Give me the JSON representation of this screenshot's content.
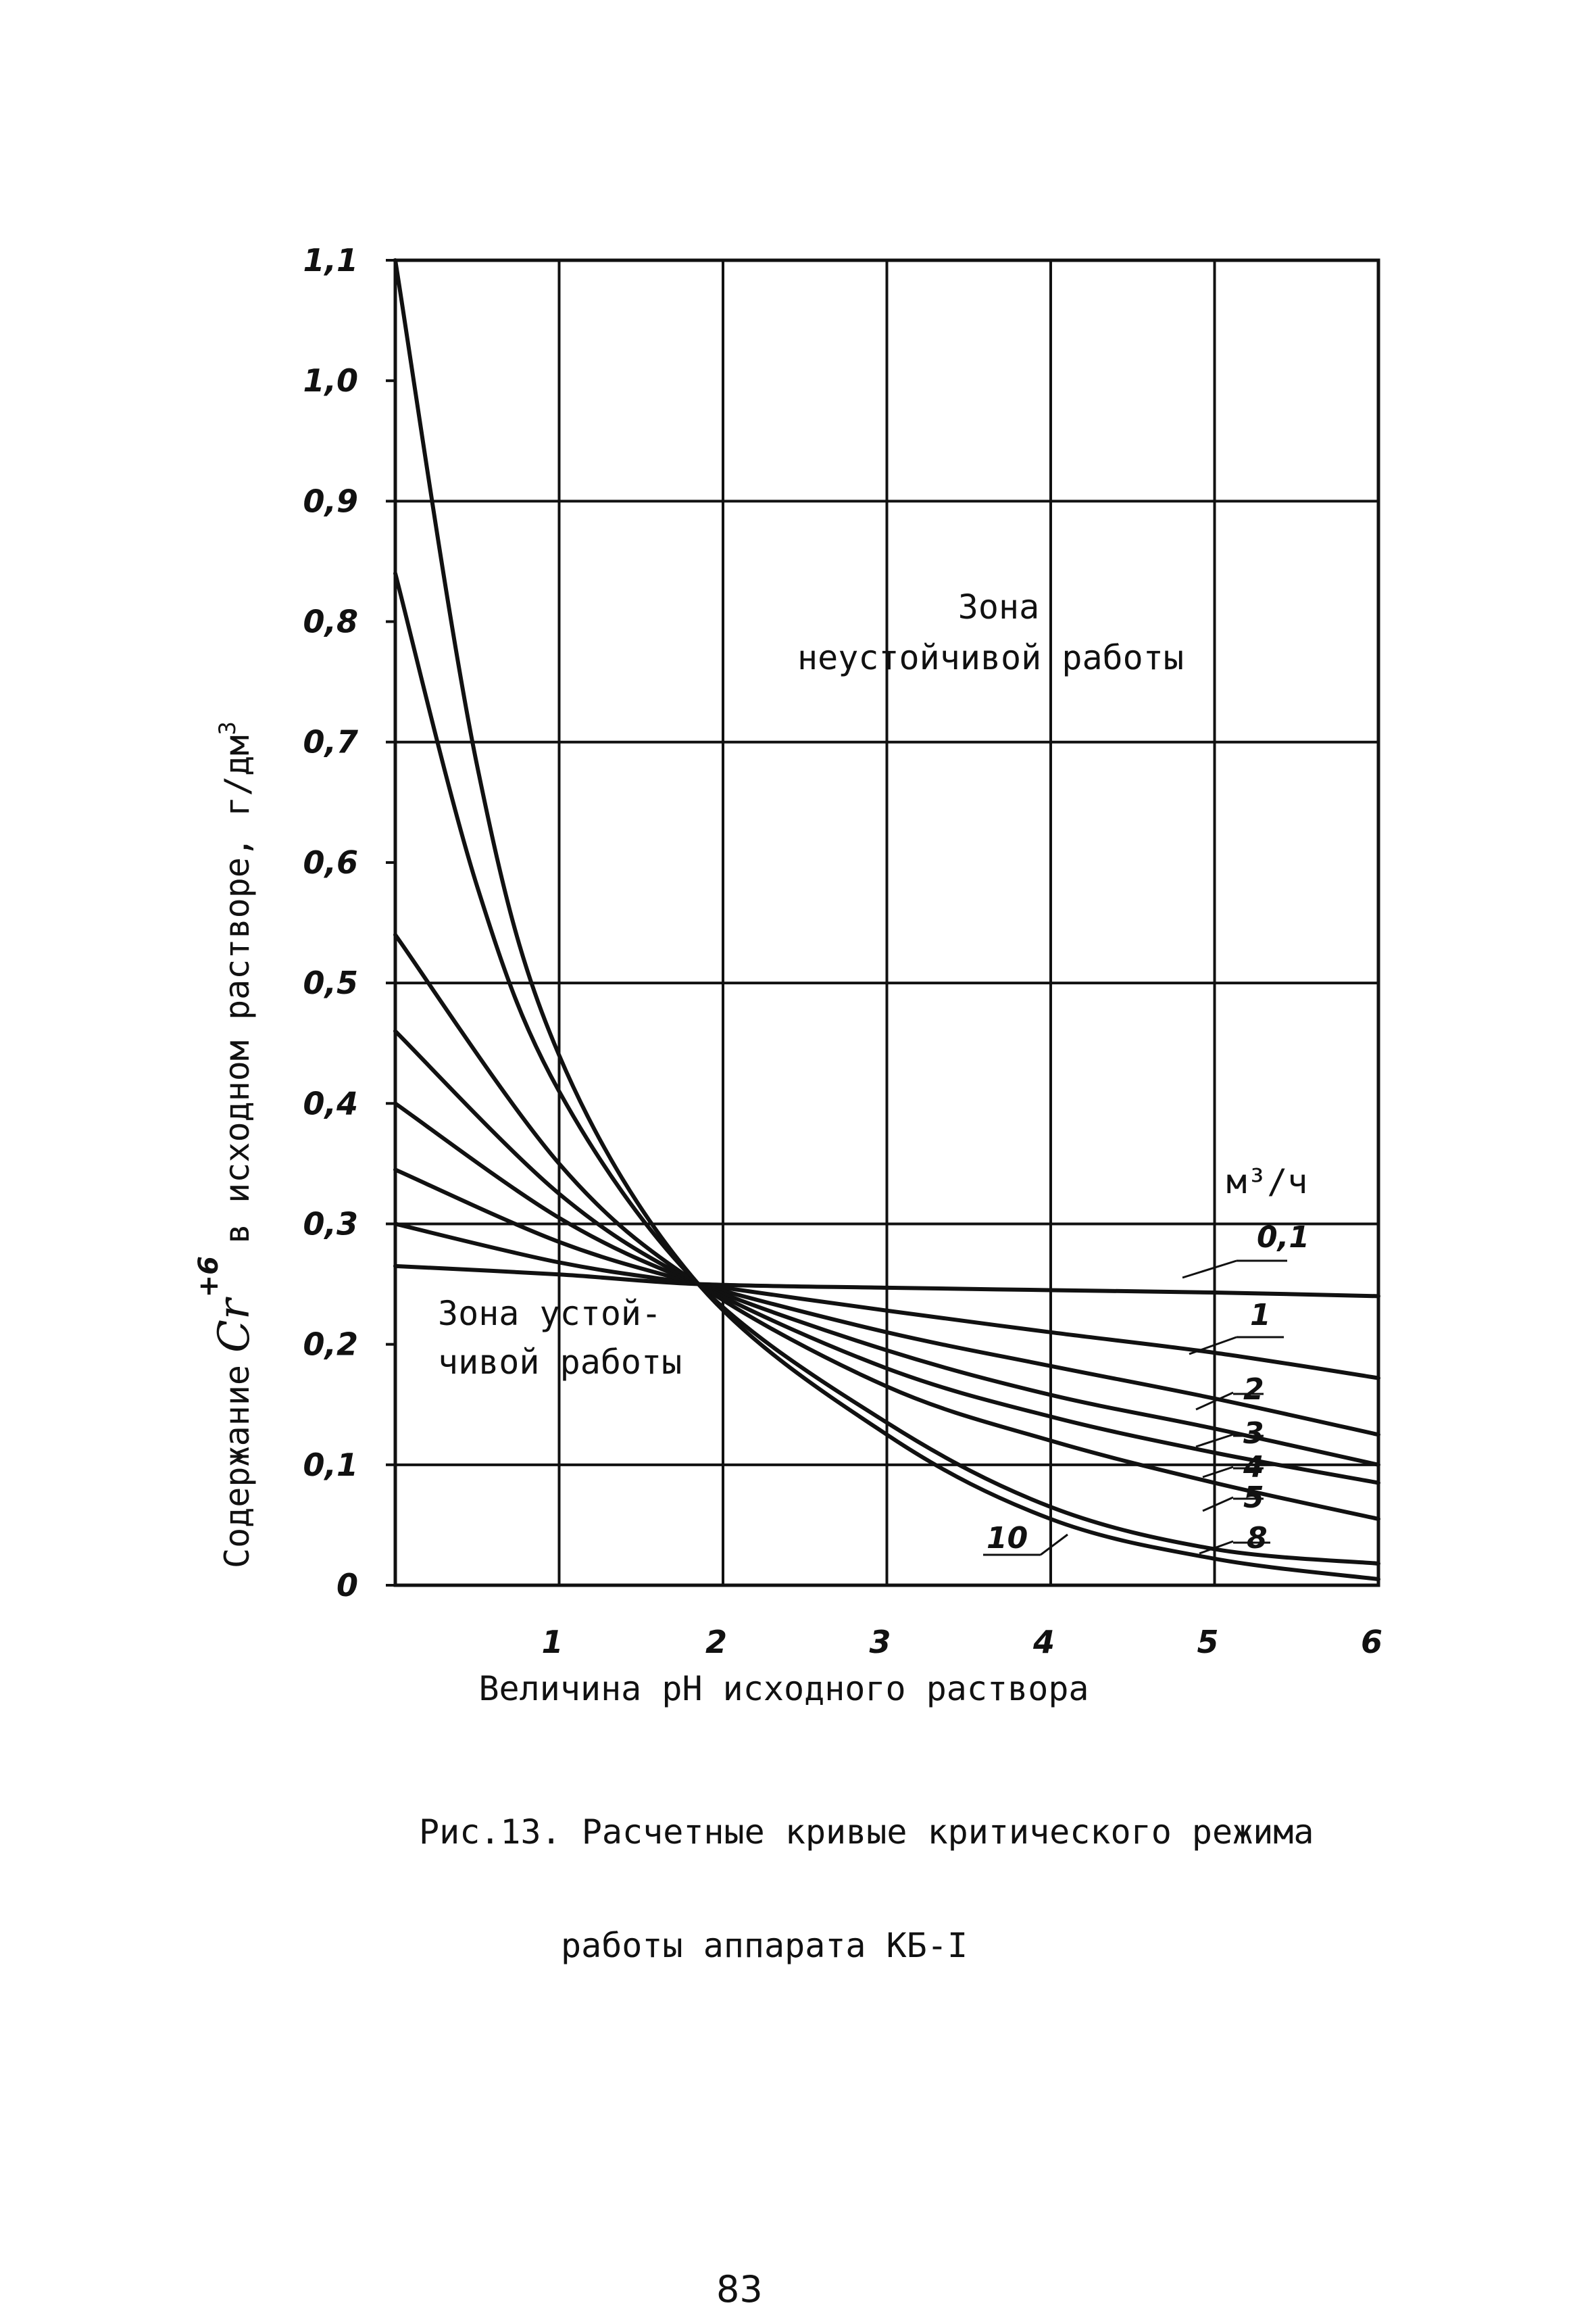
{
  "chart_data": {
    "type": "line",
    "xlabel": "Величина pH исходного раствора",
    "ylabel": "Содержание Cr+6 в исходном растворе, г/дм³",
    "ylabel_parts": {
      "prefix": "Содержание",
      "symbol": "Cr",
      "superscript": "+6",
      "suffix": "в исходном растворе, г/дм",
      "unit_exp": "3"
    },
    "xlim": [
      0,
      6
    ],
    "ylim": [
      0,
      1.1
    ],
    "x_ticks": [
      {
        "v": 1,
        "label": "1"
      },
      {
        "v": 2,
        "label": "2"
      },
      {
        "v": 3,
        "label": "3"
      },
      {
        "v": 4,
        "label": "4"
      },
      {
        "v": 5,
        "label": "5"
      },
      {
        "v": 6,
        "label": "6"
      }
    ],
    "y_ticks": [
      {
        "v": 0,
        "label": "0"
      },
      {
        "v": 0.1,
        "label": "0,1"
      },
      {
        "v": 0.2,
        "label": "0,2"
      },
      {
        "v": 0.3,
        "label": "0,3"
      },
      {
        "v": 0.4,
        "label": "0,4"
      },
      {
        "v": 0.5,
        "label": "0,5"
      },
      {
        "v": 0.6,
        "label": "0,6"
      },
      {
        "v": 0.7,
        "label": "0,7"
      },
      {
        "v": 0.8,
        "label": "0,8"
      },
      {
        "v": 0.9,
        "label": "0,9"
      },
      {
        "v": 1.0,
        "label": "1,0"
      },
      {
        "v": 1.1,
        "label": "1,1"
      }
    ],
    "grid": true,
    "legend_title": "м³/ч",
    "series": [
      {
        "name": "0,1",
        "x": [
          0,
          1,
          1.85,
          3,
          4,
          5,
          6
        ],
        "y": [
          0.265,
          0.258,
          0.25,
          0.247,
          0.245,
          0.243,
          0.24
        ]
      },
      {
        "name": "1",
        "x": [
          0,
          1,
          1.85,
          3,
          4,
          5,
          6
        ],
        "y": [
          0.3,
          0.268,
          0.25,
          0.228,
          0.21,
          0.193,
          0.172
        ]
      },
      {
        "name": "2",
        "x": [
          0,
          1,
          1.85,
          3,
          4,
          5,
          6
        ],
        "y": [
          0.345,
          0.285,
          0.25,
          0.21,
          0.182,
          0.155,
          0.125
        ]
      },
      {
        "name": "3",
        "x": [
          0,
          1,
          1.85,
          3,
          4,
          5,
          6
        ],
        "y": [
          0.4,
          0.305,
          0.25,
          0.195,
          0.158,
          0.13,
          0.1
        ]
      },
      {
        "name": "4",
        "x": [
          0,
          1,
          1.85,
          3,
          4,
          5,
          6
        ],
        "y": [
          0.46,
          0.325,
          0.25,
          0.18,
          0.14,
          0.11,
          0.085
        ]
      },
      {
        "name": "5",
        "x": [
          0,
          1,
          1.85,
          3,
          4,
          5,
          6
        ],
        "y": [
          0.54,
          0.35,
          0.25,
          0.165,
          0.12,
          0.085,
          0.055
        ]
      },
      {
        "name": "8",
        "x": [
          0,
          0.5,
          1,
          1.85,
          3,
          4,
          5,
          6
        ],
        "y": [
          0.84,
          0.58,
          0.41,
          0.25,
          0.135,
          0.065,
          0.03,
          0.018
        ]
      },
      {
        "name": "10",
        "x": [
          0,
          0.5,
          1,
          1.85,
          3,
          4,
          5,
          6
        ],
        "y": [
          1.1,
          0.68,
          0.44,
          0.25,
          0.125,
          0.055,
          0.022,
          0.005
        ]
      }
    ],
    "annotations": {
      "unstable_line1": "Зона",
      "unstable_line2": "неустойчивой работы",
      "stable_line1": "Зона устой-",
      "stable_line2": "чивой работы"
    }
  },
  "caption": {
    "line1": "Рис.13. Расчетные кривые критического режима",
    "line2": "работы аппарата КБ-I"
  },
  "page_number": "83"
}
